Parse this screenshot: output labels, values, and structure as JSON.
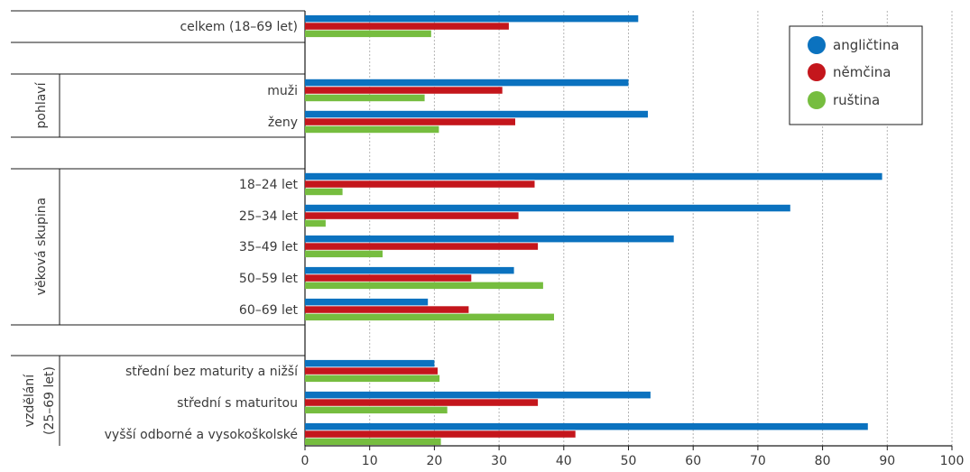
{
  "chart_data": {
    "type": "bar",
    "orientation": "horizontal",
    "colors": {
      "anglictina": "#0b72bf",
      "nemcina": "#c4161c",
      "rustina": "#76bd3f"
    },
    "legend": {
      "placement": "top-right",
      "entries": [
        "angličtina",
        "němčina",
        "ruština"
      ]
    },
    "xlim": [
      0,
      100
    ],
    "xticks": [
      "0",
      "10",
      "20",
      "30",
      "40",
      "50",
      "60",
      "70",
      "80",
      "90",
      "100"
    ],
    "grid": true,
    "groups": [
      "pohlaví",
      "věková skupina",
      "vzdělání",
      "(25–69 let)"
    ],
    "categories": [
      "celkem (18–69 let)",
      "muži",
      "ženy",
      "18–24 let",
      "25–34 let",
      "35–49 let",
      "50–59 let",
      "60–69 let",
      "střední bez maturity a nižší",
      "střední s maturitou",
      "vyšší odborné a vysokoškolské"
    ],
    "series": [
      {
        "name": "angličtina",
        "values": [
          51.5,
          50,
          53,
          89.2,
          75,
          57,
          32.3,
          19,
          20,
          53.4,
          87
        ]
      },
      {
        "name": "němčina",
        "values": [
          31.5,
          30.5,
          32.5,
          35.5,
          33,
          36,
          25.7,
          25.3,
          20.5,
          36,
          41.8
        ]
      },
      {
        "name": "ruština",
        "values": [
          19.5,
          18.5,
          20.7,
          5.8,
          3.2,
          12,
          36.8,
          38.5,
          20.8,
          22,
          21
        ]
      }
    ]
  }
}
